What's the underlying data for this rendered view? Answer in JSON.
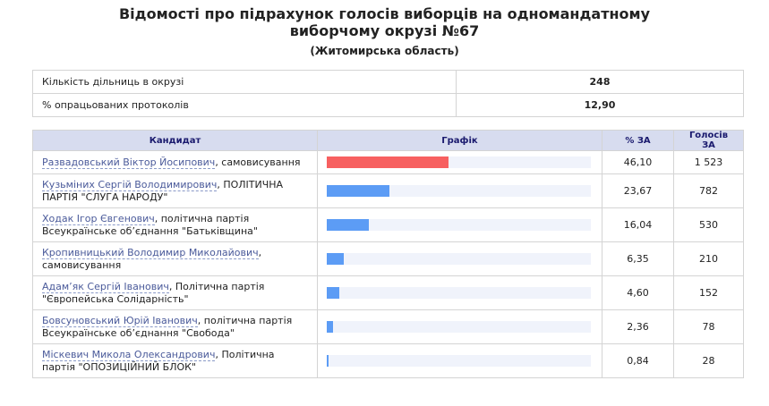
{
  "title_line1": "Відомості про підрахунок голосів виборців на одномандатному",
  "title_line2": "виборчому окрузі №67",
  "subtitle": "(Житомирська область)",
  "info": [
    {
      "label": "Кількість дільниць в окрузі",
      "value": "248"
    },
    {
      "label": "% опрацьованих протоколів",
      "value": "12,90"
    }
  ],
  "headers": {
    "candidate": "Кандидат",
    "graph": "Графік",
    "pct": "% ЗА",
    "votes": "Голосів ЗА"
  },
  "colors": {
    "leader_bar": "#f76060",
    "bar": "#5c9cf5",
    "header_bg": "#d7dcef"
  },
  "rows": [
    {
      "name": "Развадовський Віктор Йосипович",
      "party": ", самовисування",
      "pct": "46,10",
      "pct_value": 46.1,
      "votes": "1 523"
    },
    {
      "name": "Кузьміних Сергій Володимирович",
      "party": ", ПОЛІТИЧНА ПАРТІЯ \"СЛУГА НАРОДУ\"",
      "pct": "23,67",
      "pct_value": 23.67,
      "votes": "782"
    },
    {
      "name": "Ходак Ігор Євгенович",
      "party": ", політична партія Всеукраїнське об’єднання \"Батьківщина\"",
      "pct": "16,04",
      "pct_value": 16.04,
      "votes": "530"
    },
    {
      "name": "Кропивницький Володимир Миколайович",
      "party": ", самовисування",
      "pct": "6,35",
      "pct_value": 6.35,
      "votes": "210"
    },
    {
      "name": "Адам’як Сергій Іванович",
      "party": ", Політична партія \"Європейська Солідарність\"",
      "pct": "4,60",
      "pct_value": 4.6,
      "votes": "152"
    },
    {
      "name": "Бовсуновський Юрій Іванович",
      "party": ", політична партія Всеукраїнське об’єднання \"Свобода\"",
      "pct": "2,36",
      "pct_value": 2.36,
      "votes": "78"
    },
    {
      "name": "Міскевич Микола Олександрович",
      "party": ", Політична партія \"ОПОЗИЦІЙНИЙ БЛОК\"",
      "pct": "0,84",
      "pct_value": 0.84,
      "votes": "28"
    }
  ]
}
